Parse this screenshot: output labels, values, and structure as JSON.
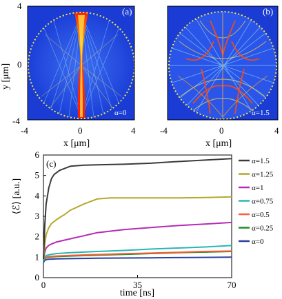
{
  "panel_a": {
    "label": "(a)",
    "alpha_text": "α=0",
    "xlabel": "x [μm]",
    "ylabel": "y [μm]",
    "xticks": [
      "-4",
      "0",
      "4"
    ],
    "yticks": [
      "4",
      "0",
      "-4"
    ]
  },
  "panel_b": {
    "label": "(b)",
    "alpha_text": "α=1.5",
    "xlabel": "x [μm]",
    "xticks": [
      "-4",
      "0",
      "4"
    ]
  },
  "colors": {
    "map_background": "#1b3fd8",
    "map_dark": "#0a1f8f",
    "boundary": "#f4e84a"
  },
  "chart_data": {
    "type": "line",
    "panel_label": "(c)",
    "xlabel": "time [ns]",
    "ylabel": "⟨ℰ⟩ [a.u.]",
    "xlim": [
      0,
      70
    ],
    "ylim": [
      0,
      6
    ],
    "xticks": [
      "0",
      "35",
      "70"
    ],
    "yticks": [
      "0",
      "1",
      "2",
      "3",
      "4",
      "5",
      "6"
    ],
    "legend_position": "right",
    "series": [
      {
        "name": "α=1.5",
        "color": "#3a3a3a",
        "x": [
          0,
          0.5,
          1,
          2,
          3,
          4,
          6,
          8,
          10,
          15,
          20,
          30,
          40,
          50,
          60,
          70
        ],
        "y": [
          0.9,
          2.6,
          3.6,
          4.4,
          4.85,
          5.05,
          5.25,
          5.35,
          5.45,
          5.5,
          5.52,
          5.55,
          5.6,
          5.68,
          5.75,
          5.82
        ]
      },
      {
        "name": "α=1.25",
        "color": "#b5a82a",
        "x": [
          0,
          0.5,
          1,
          2,
          3,
          5,
          8,
          10,
          15,
          20,
          25,
          30,
          40,
          50,
          60,
          70
        ],
        "y": [
          0.9,
          1.6,
          2.1,
          2.45,
          2.65,
          2.85,
          3.1,
          3.3,
          3.6,
          3.85,
          3.9,
          3.9,
          3.9,
          3.9,
          3.92,
          3.95
        ]
      },
      {
        "name": "α=1",
        "color": "#b52bb5",
        "x": [
          0,
          0.5,
          1,
          2,
          3,
          5,
          10,
          15,
          20,
          30,
          40,
          50,
          60,
          70
        ],
        "y": [
          0.9,
          1.25,
          1.45,
          1.58,
          1.65,
          1.75,
          1.9,
          2.05,
          2.2,
          2.35,
          2.45,
          2.55,
          2.62,
          2.7
        ]
      },
      {
        "name": "α=0.75",
        "color": "#2ab5b5",
        "x": [
          0,
          0.5,
          1,
          2,
          5,
          10,
          20,
          30,
          40,
          50,
          60,
          70
        ],
        "y": [
          0.85,
          1.0,
          1.08,
          1.12,
          1.18,
          1.22,
          1.28,
          1.33,
          1.4,
          1.45,
          1.5,
          1.57
        ]
      },
      {
        "name": "α=0.5",
        "color": "#ff5a3a",
        "x": [
          0,
          0.5,
          1,
          2,
          5,
          10,
          20,
          30,
          40,
          50,
          60,
          70
        ],
        "y": [
          0.85,
          0.95,
          1.0,
          1.03,
          1.06,
          1.09,
          1.13,
          1.17,
          1.2,
          1.24,
          1.28,
          1.3
        ]
      },
      {
        "name": "α=0.25",
        "color": "#1e8e1e",
        "x": [
          0,
          0.5,
          1,
          2,
          5,
          10,
          20,
          30,
          40,
          50,
          60,
          70
        ],
        "y": [
          0.8,
          0.92,
          0.97,
          1.0,
          1.03,
          1.06,
          1.1,
          1.14,
          1.18,
          1.22,
          1.25,
          1.28
        ]
      },
      {
        "name": "α=0",
        "color": "#2a3f9e",
        "x": [
          0,
          0.5,
          1,
          2,
          5,
          10,
          20,
          30,
          40,
          50,
          60,
          70
        ],
        "y": [
          0.75,
          0.85,
          0.88,
          0.9,
          0.92,
          0.93,
          0.95,
          0.96,
          0.97,
          0.98,
          0.99,
          1.0
        ]
      }
    ]
  }
}
